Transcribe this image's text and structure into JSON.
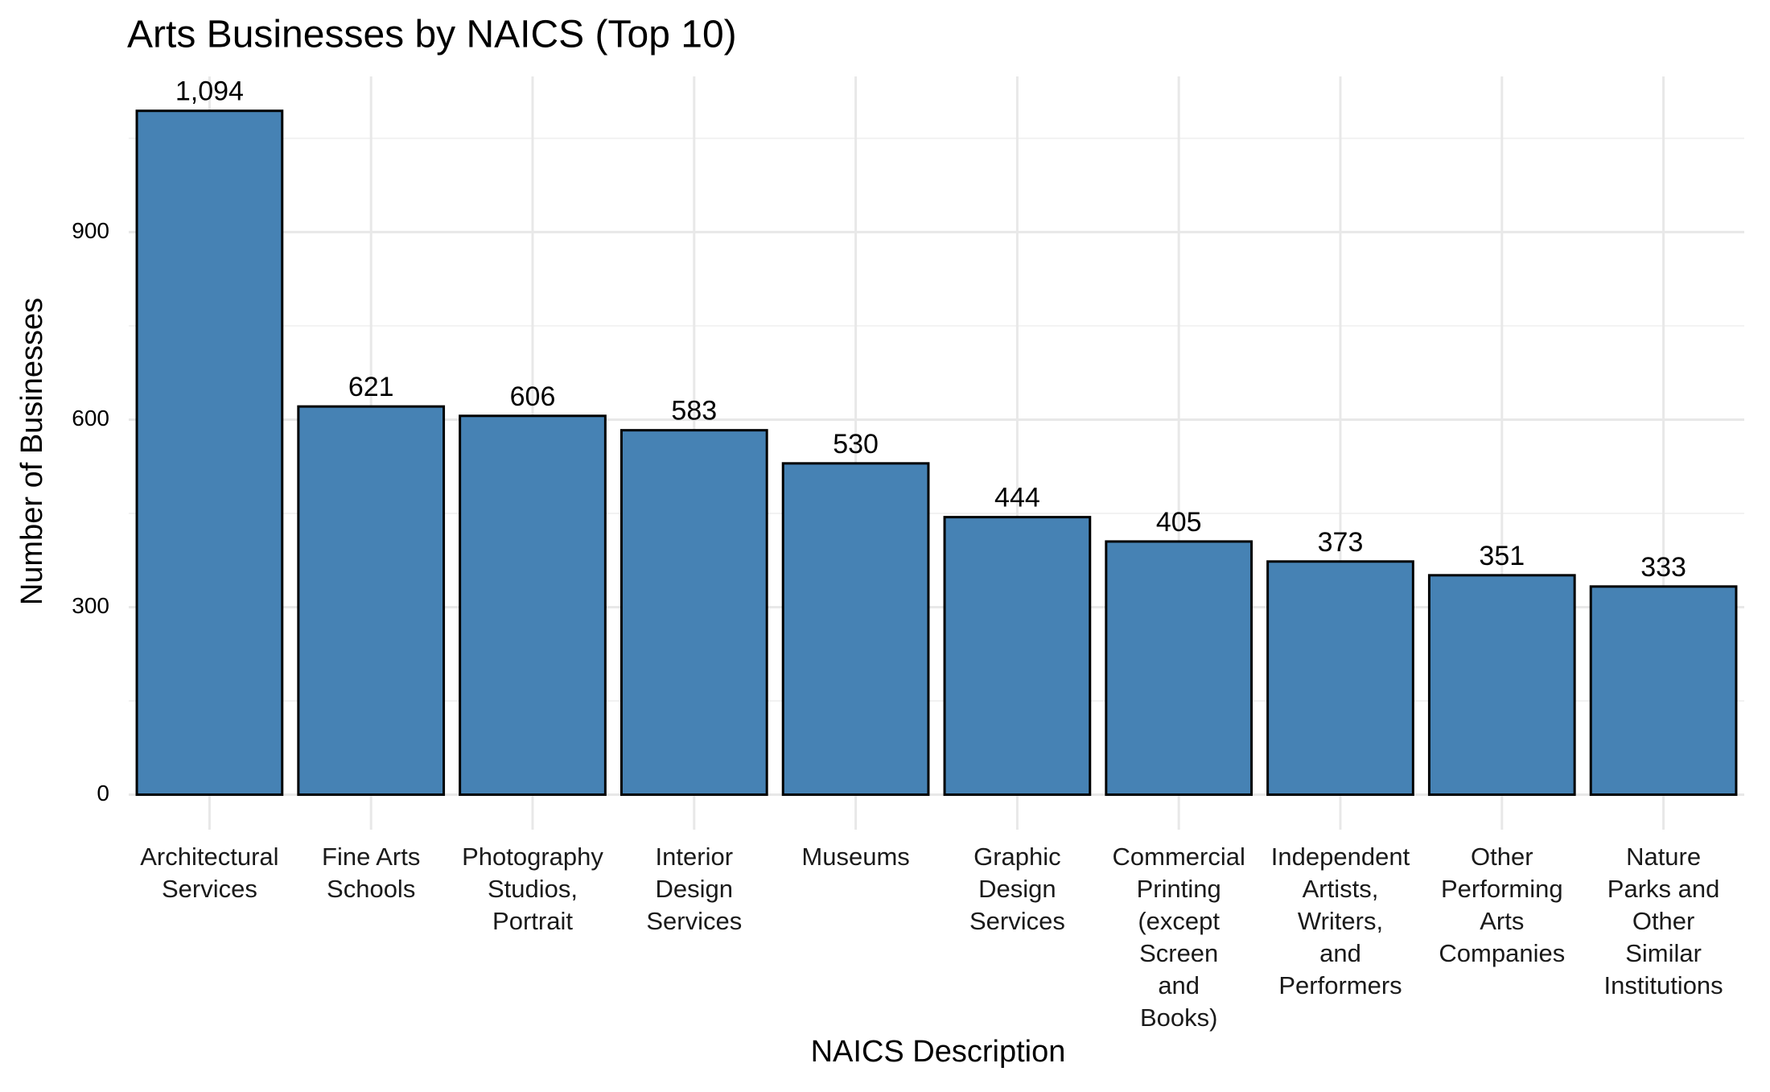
{
  "chart_data": {
    "type": "bar",
    "title": "Arts Businesses by NAICS (Top 10)",
    "x_label": "NAICS Description",
    "y_label": "Number of Businesses",
    "categories": [
      "Architectural\nServices",
      "Fine Arts\nSchools",
      "Photography\nStudios,\nPortrait",
      "Interior\nDesign\nServices",
      "Museums",
      "Graphic\nDesign\nServices",
      "Commercial\nPrinting\n(except\nScreen\nand\nBooks)",
      "Independent\nArtists,\nWriters,\nand\nPerformers",
      "Other\nPerforming\nArts\nCompanies",
      "Nature\nParks and\nOther\nSimilar\nInstitutions"
    ],
    "values": [
      1094,
      621,
      606,
      583,
      530,
      444,
      405,
      373,
      351,
      333
    ],
    "value_labels": [
      "1,094",
      "621",
      "606",
      "583",
      "530",
      "444",
      "405",
      "373",
      "351",
      "333"
    ],
    "color": "#4682b4",
    "ylim": [
      -56,
      1149
    ],
    "yticks": [
      0,
      300,
      600,
      900
    ],
    "yticks_minor": [
      150,
      450,
      750,
      1050
    ],
    "grid": true
  }
}
